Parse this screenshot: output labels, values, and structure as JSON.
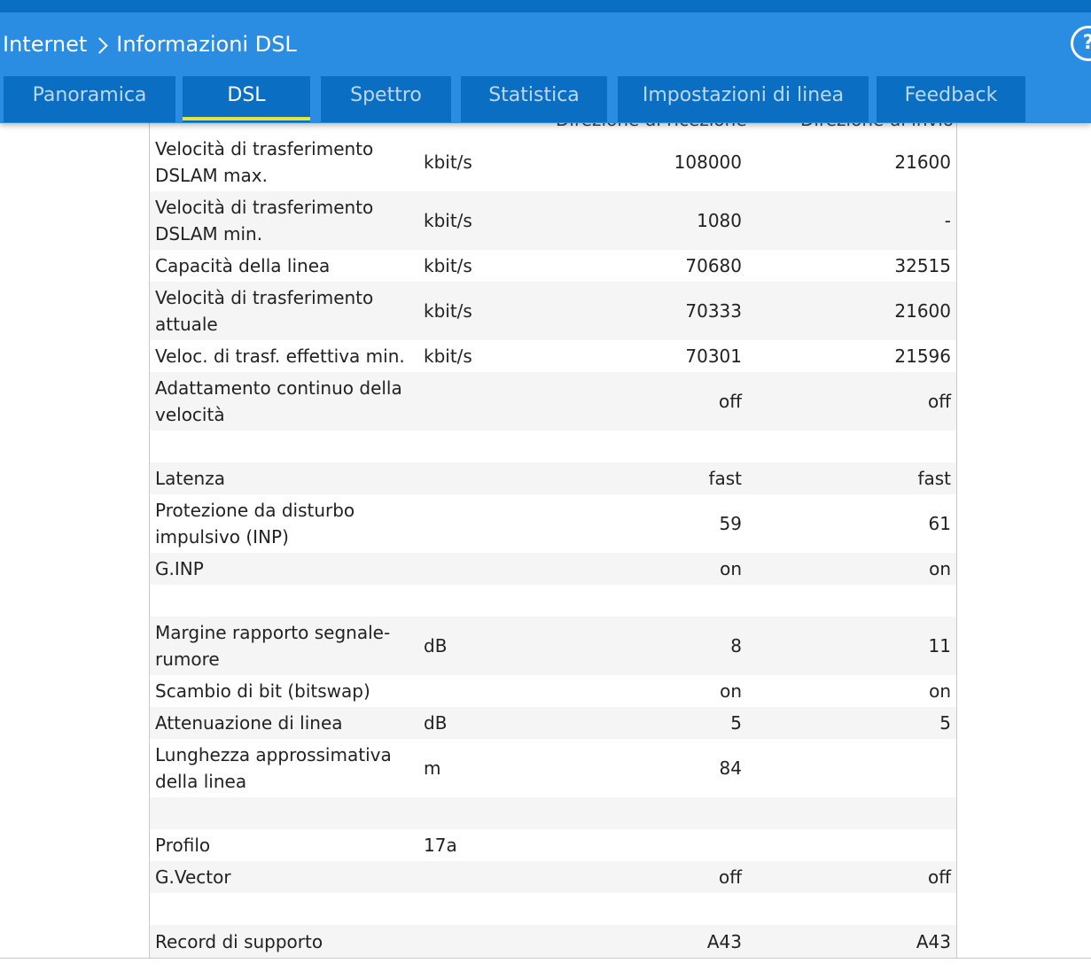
{
  "breadcrumb": {
    "root": "Internet",
    "current": "Informazioni DSL"
  },
  "help_label": "?",
  "tabs": [
    {
      "label": "Panoramica",
      "active": false
    },
    {
      "label": "DSL",
      "active": true
    },
    {
      "label": "Spettro",
      "active": false
    },
    {
      "label": "Statistica",
      "active": false
    },
    {
      "label": "Impostazioni di linea",
      "active": false
    },
    {
      "label": "Feedback",
      "active": false
    }
  ],
  "columns": {
    "down": "Direzione di ricezione",
    "up": "Direzione di invio"
  },
  "rows": [
    {
      "label": "Velocità di trasferimento DSLAM max.",
      "unit": "kbit/s",
      "down": "108000",
      "up": "21600"
    },
    {
      "label": "Velocità di trasferimento DSLAM min.",
      "unit": "kbit/s",
      "down": "1080",
      "up": "-"
    },
    {
      "label": "Capacità della linea",
      "unit": "kbit/s",
      "down": "70680",
      "up": "32515"
    },
    {
      "label": "Velocità di trasferimento attuale",
      "unit": "kbit/s",
      "down": "70333",
      "up": "21600"
    },
    {
      "label": "Veloc. di trasf. effettiva min.",
      "unit": "kbit/s",
      "down": "70301",
      "up": "21596"
    },
    {
      "label": "Adattamento continuo della velocità",
      "unit": "",
      "down": "off",
      "up": "off"
    },
    {
      "label": "",
      "unit": "",
      "down": "",
      "up": ""
    },
    {
      "label": "Latenza",
      "unit": "",
      "down": "fast",
      "up": "fast"
    },
    {
      "label": "Protezione da disturbo impulsivo (INP)",
      "unit": "",
      "down": "59",
      "up": "61"
    },
    {
      "label": "G.INP",
      "unit": "",
      "down": "on",
      "up": "on"
    },
    {
      "label": "",
      "unit": "",
      "down": "",
      "up": ""
    },
    {
      "label": "Margine rapporto segnale-rumore",
      "unit": "dB",
      "down": "8",
      "up": "11"
    },
    {
      "label": "Scambio di bit (bitswap)",
      "unit": "",
      "down": "on",
      "up": "on"
    },
    {
      "label": "Attenuazione di linea",
      "unit": "dB",
      "down": "5",
      "up": "5"
    },
    {
      "label": "Lunghezza approssimativa della linea",
      "unit": "m",
      "down": "84",
      "up": ""
    },
    {
      "label": "",
      "unit": "",
      "down": "",
      "up": ""
    },
    {
      "label": "Profilo",
      "unit": "17a",
      "down": "",
      "up": ""
    },
    {
      "label": "G.Vector",
      "unit": "",
      "down": "off",
      "up": "off"
    },
    {
      "label": "",
      "unit": "",
      "down": "",
      "up": ""
    },
    {
      "label": "Record di supporto",
      "unit": "",
      "down": "A43",
      "up": "A43"
    }
  ],
  "colors": {
    "header_bg": "#2a8de1",
    "tab_bg": "#0a6fc2",
    "tab_active_underline": "#e4e639",
    "row_alt_bg": "#f5f5f5"
  }
}
